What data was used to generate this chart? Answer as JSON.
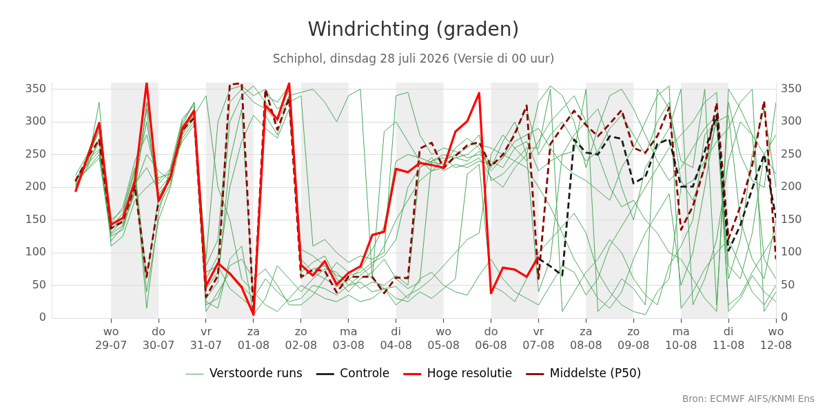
{
  "chart_data": {
    "type": "line",
    "title": "Windrichting (graden)",
    "subtitle": "Schiphol, dinsdag 28 juli 2026 (Versie di 00 uur)",
    "annotations": [
      "Bron: ECMWF AIFS/KNMI Ens"
    ],
    "x": [
      "2026-07-28T06:00",
      "2026-07-28T12:00",
      "2026-07-28T18:00",
      "2026-07-29T00:00",
      "2026-07-29T06:00",
      "2026-07-29T12:00",
      "2026-07-29T18:00",
      "2026-07-30T00:00",
      "2026-07-30T06:00",
      "2026-07-30T12:00",
      "2026-07-30T18:00",
      "2026-07-31T00:00",
      "2026-07-31T06:00",
      "2026-07-31T12:00",
      "2026-07-31T18:00",
      "2026-08-01T00:00",
      "2026-08-01T06:00",
      "2026-08-01T12:00",
      "2026-08-01T18:00",
      "2026-08-02T00:00",
      "2026-08-02T06:00",
      "2026-08-02T12:00",
      "2026-08-02T18:00",
      "2026-08-03T00:00",
      "2026-08-03T06:00",
      "2026-08-03T12:00",
      "2026-08-03T18:00",
      "2026-08-04T00:00",
      "2026-08-04T06:00",
      "2026-08-04T12:00",
      "2026-08-04T18:00",
      "2026-08-05T00:00",
      "2026-08-05T06:00",
      "2026-08-05T12:00",
      "2026-08-05T18:00",
      "2026-08-06T00:00",
      "2026-08-06T06:00",
      "2026-08-06T12:00",
      "2026-08-06T18:00",
      "2026-08-07T00:00",
      "2026-08-07T06:00",
      "2026-08-07T12:00",
      "2026-08-07T18:00",
      "2026-08-08T00:00",
      "2026-08-08T06:00",
      "2026-08-08T12:00",
      "2026-08-08T18:00",
      "2026-08-09T00:00",
      "2026-08-09T06:00",
      "2026-08-09T12:00",
      "2026-08-09T18:00",
      "2026-08-10T00:00",
      "2026-08-10T06:00",
      "2026-08-10T12:00",
      "2026-08-10T18:00",
      "2026-08-11T00:00",
      "2026-08-11T06:00",
      "2026-08-11T12:00",
      "2026-08-11T18:00",
      "2026-08-12T00:00"
    ],
    "xlim": [
      "2026-07-27T18:00",
      "2026-08-12T00:00"
    ],
    "xticks": [
      {
        "value": "2026-07-29",
        "label": "wo\n29-07"
      },
      {
        "value": "2026-07-30",
        "label": "do\n30-07"
      },
      {
        "value": "2026-07-31",
        "label": "vr\n31-07"
      },
      {
        "value": "2026-08-01",
        "label": "za\n01-08"
      },
      {
        "value": "2026-08-02",
        "label": "zo\n02-08"
      },
      {
        "value": "2026-08-03",
        "label": "ma\n03-08"
      },
      {
        "value": "2026-08-04",
        "label": "di\n04-08"
      },
      {
        "value": "2026-08-05",
        "label": "wo\n05-08"
      },
      {
        "value": "2026-08-06",
        "label": "do\n06-08"
      },
      {
        "value": "2026-08-07",
        "label": "vr\n07-08"
      },
      {
        "value": "2026-08-08",
        "label": "za\n08-08"
      },
      {
        "value": "2026-08-09",
        "label": "zo\n09-08"
      },
      {
        "value": "2026-08-10",
        "label": "ma\n10-08"
      },
      {
        "value": "2026-08-11",
        "label": "di\n11-08"
      },
      {
        "value": "2026-08-12",
        "label": "wo\n12-08"
      }
    ],
    "ylim": [
      0,
      360
    ],
    "yticks": [
      0,
      50,
      100,
      150,
      200,
      250,
      300,
      350
    ],
    "y2lim": [
      0,
      360
    ],
    "y2ticks": [
      0,
      50,
      100,
      150,
      200,
      250,
      300,
      350
    ],
    "grid": "y",
    "legend": "bottom",
    "marker": "none",
    "bands": [
      {
        "axis": "x",
        "from": "2026-07-29",
        "to": "2026-07-30",
        "color": "#eeeeee"
      },
      {
        "axis": "x",
        "from": "2026-07-31",
        "to": "2026-08-01",
        "color": "#eeeeee"
      },
      {
        "axis": "x",
        "from": "2026-08-02",
        "to": "2026-08-03",
        "color": "#eeeeee"
      },
      {
        "axis": "x",
        "from": "2026-08-04",
        "to": "2026-08-05",
        "color": "#eeeeee"
      },
      {
        "axis": "x",
        "from": "2026-08-06",
        "to": "2026-08-07",
        "color": "#eeeeee"
      },
      {
        "axis": "x",
        "from": "2026-08-08",
        "to": "2026-08-09",
        "color": "#eeeeee"
      },
      {
        "axis": "x",
        "from": "2026-08-10",
        "to": "2026-08-11",
        "color": "#eeeeee"
      }
    ],
    "series": [
      {
        "name": "Verstoorde runs",
        "color": "#4aa85a",
        "line_style": "solid",
        "values": [
          212,
          236,
          268,
          130,
          150,
          210,
          300,
          190,
          212,
          285,
          315,
          60,
          95,
          300,
          340,
          355,
          330,
          305,
          350,
          90,
          70,
          60,
          48,
          58,
          75,
          105,
          140,
          240,
          250,
          245,
          238,
          235,
          260,
          275,
          260,
          225,
          245,
          285,
          320,
          250,
          280,
          300,
          270,
          240,
          255,
          290,
          310,
          280,
          250,
          300,
          330,
          210,
          180,
          230,
          300,
          60,
          120,
          250,
          320,
          200
        ]
      },
      {
        "color": "#4aa85a",
        "line_style": "solid",
        "values": [
          205,
          228,
          250,
          118,
          140,
          195,
          320,
          170,
          205,
          295,
          330,
          30,
          55,
          240,
          320,
          20,
          310,
          280,
          340,
          70,
          85,
          95,
          60,
          40,
          60,
          70,
          90,
          60,
          45,
          55,
          240,
          250,
          245,
          240,
          255,
          230,
          270,
          300,
          250,
          40,
          90,
          250,
          280,
          300,
          320,
          270,
          200,
          150,
          230,
          260,
          290,
          350,
          20,
          60,
          120,
          240,
          300,
          280,
          90,
          60
        ]
      },
      {
        "color": "#4aa85a",
        "line_style": "solid",
        "values": [
          208,
          245,
          285,
          140,
          160,
          225,
          15,
          160,
          230,
          305,
          325,
          10,
          40,
          70,
          50,
          30,
          60,
          40,
          25,
          30,
          50,
          45,
          35,
          50,
          55,
          40,
          45,
          48,
          30,
          60,
          70,
          50,
          40,
          35,
          65,
          90,
          60,
          40,
          30,
          20,
          50,
          80,
          70,
          35,
          60,
          110,
          140,
          170,
          200,
          230,
          260,
          280,
          300,
          330,
          345,
          10,
          30,
          65,
          40,
          25
        ]
      },
      {
        "color": "#4aa85a",
        "line_style": "solid",
        "values": [
          215,
          232,
          330,
          110,
          125,
          180,
          200,
          215,
          220,
          275,
          300,
          90,
          300,
          350,
          355,
          340,
          350,
          320,
          330,
          340,
          110,
          120,
          100,
          85,
          95,
          90,
          100,
          340,
          345,
          280,
          250,
          260,
          255,
          245,
          250,
          240,
          230,
          260,
          270,
          225,
          240,
          250,
          255,
          350,
          10,
          30,
          60,
          45,
          20,
          350,
          320,
          240,
          230,
          350,
          20,
          330,
          250,
          210,
          200,
          330
        ]
      },
      {
        "color": "#4aa85a",
        "line_style": "solid",
        "values": [
          200,
          240,
          290,
          145,
          170,
          240,
          280,
          205,
          225,
          300,
          330,
          20,
          30,
          80,
          90,
          60,
          75,
          50,
          20,
          20,
          35,
          60,
          85,
          70,
          80,
          60,
          285,
          300,
          270,
          240,
          225,
          240,
          250,
          260,
          280,
          210,
          220,
          240,
          260,
          260,
          350,
          10,
          40,
          70,
          90,
          120,
          100,
          60,
          35,
          20,
          80,
          110,
          150,
          280,
          300,
          310,
          150,
          90,
          60,
          150
        ]
      },
      {
        "color": "#4aa85a",
        "line_style": "solid",
        "values": [
          210,
          235,
          255,
          125,
          135,
          200,
          250,
          225,
          210,
          290,
          310,
          340,
          200,
          150,
          60,
          40,
          20,
          10,
          30,
          50,
          40,
          30,
          25,
          35,
          25,
          30,
          45,
          20,
          35,
          45,
          60,
          80,
          100,
          120,
          130,
          250,
          280,
          260,
          240,
          270,
          300,
          320,
          340,
          300,
          250,
          200,
          170,
          180,
          150,
          130,
          100,
          90,
          60,
          30,
          10,
          350,
          320,
          280,
          250,
          280
        ]
      },
      {
        "color": "#4aa85a",
        "line_style": "solid",
        "values": [
          218,
          250,
          300,
          135,
          155,
          215,
          40,
          150,
          200,
          280,
          305,
          70,
          80,
          45,
          30,
          15,
          340,
          330,
          355,
          60,
          75,
          80,
          55,
          65,
          70,
          85,
          95,
          120,
          200,
          230,
          245,
          225,
          235,
          230,
          240,
          235,
          245,
          270,
          280,
          290,
          260,
          235,
          220,
          210,
          195,
          180,
          230,
          260,
          300,
          340,
          355,
          15,
          40,
          75,
          100,
          120,
          80,
          40,
          20,
          50
        ]
      },
      {
        "color": "#4aa85a",
        "line_style": "solid",
        "values": [
          203,
          230,
          275,
          150,
          165,
          230,
          60,
          185,
          215,
          290,
          320,
          80,
          120,
          330,
          350,
          330,
          320,
          300,
          340,
          345,
          350,
          330,
          300,
          340,
          350,
          60,
          45,
          30,
          25,
          40,
          30,
          45,
          60,
          220,
          235,
          50,
          40,
          25,
          60,
          100,
          120,
          140,
          160,
          130,
          70,
          40,
          20,
          10,
          5,
          40,
          60,
          200,
          210,
          240,
          270,
          290,
          330,
          350,
          10,
          40
        ]
      },
      {
        "color": "#4aa85a",
        "line_style": "solid",
        "values": [
          207,
          242,
          258,
          138,
          145,
          205,
          230,
          195,
          218,
          282,
          312,
          45,
          70,
          200,
          270,
          310,
          290,
          275,
          320,
          105,
          95,
          80,
          65,
          60,
          45,
          55,
          50,
          65,
          50,
          230,
          240,
          245,
          230,
          235,
          245,
          215,
          200,
          230,
          250,
          330,
          355,
          340,
          300,
          230,
          290,
          340,
          350,
          320,
          280,
          240,
          210,
          230,
          260,
          290,
          310,
          80,
          60,
          130,
          250,
          220
        ]
      },
      {
        "color": "#4aa85a",
        "line_style": "solid",
        "values": [
          211,
          226,
          245,
          128,
          142,
          190,
          330,
          210,
          228,
          270,
          295,
          25,
          15,
          90,
          110,
          5,
          30,
          80,
          60,
          40,
          60,
          75,
          70,
          50,
          65,
          80,
          110,
          150,
          180,
          210,
          225,
          230,
          245,
          250,
          265,
          260,
          250,
          240,
          230,
          200,
          170,
          130,
          90,
          60,
          30,
          15,
          40,
          90,
          130,
          160,
          190,
          50,
          100,
          200,
          310,
          20,
          35,
          70,
          100,
          130
        ]
      },
      {
        "name": "Controle",
        "color": "#1a1a1a",
        "line_style": "dashed",
        "values": [
          null,
          null,
          null,
          null,
          null,
          null,
          null,
          null,
          null,
          null,
          null,
          null,
          null,
          null,
          null,
          null,
          null,
          null,
          null,
          null,
          null,
          null,
          null,
          null,
          null,
          null,
          null,
          null,
          null,
          null,
          null,
          null,
          null,
          null,
          null,
          null,
          null,
          null,
          null,
          91,
          79,
          65,
          273,
          253,
          250,
          278,
          274,
          206,
          216,
          266,
          274,
          201,
          201,
          255,
          310,
          103,
          142,
          198,
          250,
          153
        ]
      },
      {
        "name": "Hoge resolutie",
        "color": "#ff0000",
        "line_style": "solid",
        "values": [
          193,
          245,
          298,
          143,
          153,
          209,
          360,
          179,
          216,
          290,
          317,
          49,
          84,
          68,
          47,
          5,
          325,
          304,
          359,
          81,
          65,
          87,
          51,
          69,
          79,
          127,
          132,
          228,
          223,
          237,
          234,
          230,
          285,
          301,
          344,
          38,
          77,
          74,
          63,
          94,
          null,
          null,
          null,
          null,
          null,
          null,
          null,
          null,
          null,
          null,
          null,
          null,
          null,
          null,
          null,
          null,
          null,
          null,
          null,
          null
        ]
      },
      {
        "name": "Middelste (P50)",
        "color": "#8b0000",
        "line_style": "dashed",
        "values": [
          209,
          244,
          273,
          137,
          148,
          202,
          63,
          178,
          215,
          287,
          306,
          32,
          65,
          357,
          359,
          9,
          350,
          288,
          336,
          63,
          74,
          72,
          39,
          63,
          63,
          63,
          38,
          62,
          61,
          259,
          268,
          229,
          248,
          264,
          269,
          232,
          250,
          281,
          325,
          60,
          266,
          292,
          317,
          295,
          278,
          297,
          318,
          260,
          253,
          278,
          322,
          135,
          171,
          232,
          329,
          121,
          171,
          234,
          332,
          90
        ]
      }
    ]
  }
}
